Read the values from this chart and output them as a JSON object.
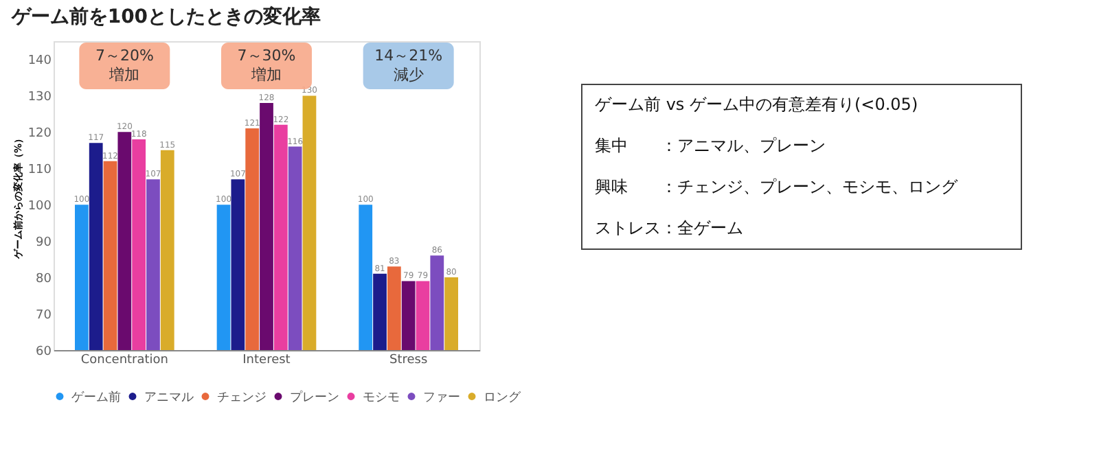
{
  "chart_data": {
    "type": "bar",
    "title": "ゲーム前を100としたときの変化率",
    "ylabel": "ゲーム前からの変化率（%）",
    "categories": [
      "Concentration",
      "Interest",
      "Stress"
    ],
    "series": [
      {
        "name": "ゲーム前",
        "color": "#2196f3",
        "values": [
          100,
          100,
          100
        ]
      },
      {
        "name": "アニマル",
        "color": "#1c1c8c",
        "values": [
          117,
          107,
          81
        ]
      },
      {
        "name": "チェンジ",
        "color": "#e8693c",
        "values": [
          112,
          121,
          83
        ]
      },
      {
        "name": "プレーン",
        "color": "#6a0a6e",
        "values": [
          120,
          128,
          79
        ]
      },
      {
        "name": "モシモ",
        "color": "#e93ea0",
        "values": [
          118,
          122,
          79
        ]
      },
      {
        "name": "ファー",
        "color": "#7c4dbf",
        "values": [
          107,
          116,
          86
        ]
      },
      {
        "name": "ロング",
        "color": "#d9ac2a",
        "values": [
          115,
          130,
          80
        ]
      }
    ],
    "ylim": [
      60,
      145
    ],
    "yticks": [
      60,
      70,
      80,
      90,
      100,
      110,
      120,
      130,
      140
    ],
    "grid": false,
    "legend": "bottom",
    "data_labels": true,
    "annotations": [
      "7～20%\n増加",
      "7～30%\n増加",
      "14～21%\n減少",
      "ゲーム前 vs ゲーム中の有意差有り(<0.05)",
      "集中　　：アニマル、プレーン",
      "興味　　：チェンジ、プレーン、モシモ、ロング",
      "ストレス：全ゲーム"
    ]
  }
}
